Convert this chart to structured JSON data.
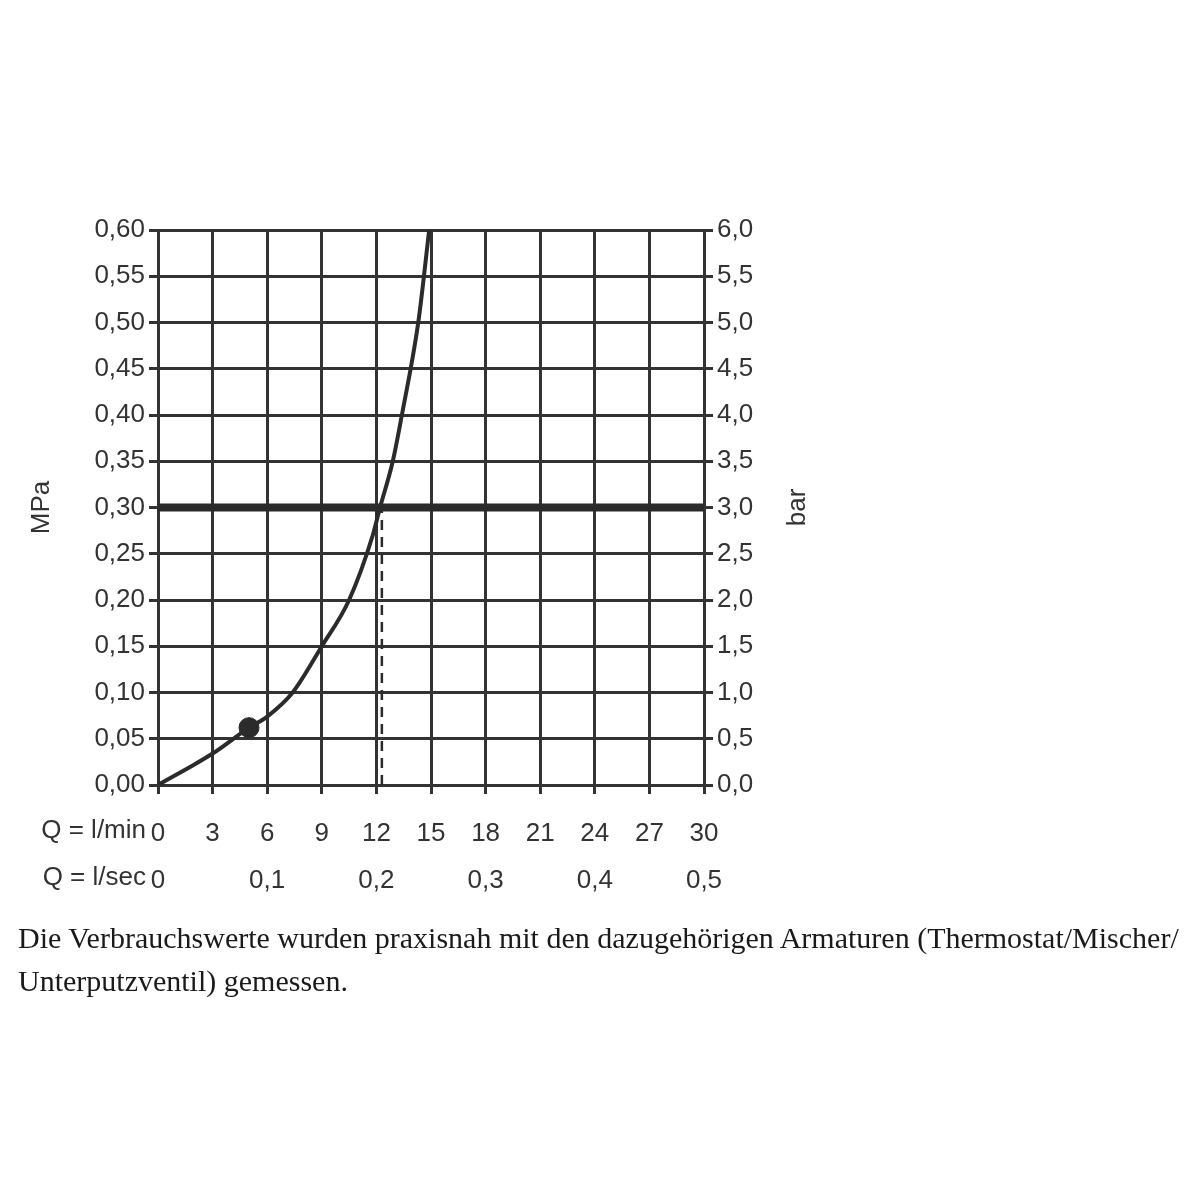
{
  "chart_data": {
    "type": "line",
    "xlabel": "Q = l/min",
    "x2label": "Q = l/sec",
    "ylabel": "MPa",
    "y2label": "bar",
    "x": [
      0,
      3,
      5,
      6,
      7.4,
      9,
      10.5,
      11.8,
      12.2,
      12.9,
      13.4,
      14.3,
      14.9
    ],
    "series": [
      {
        "color": "#2b2b2b",
        "values": [
          0,
          0.034,
          0.062,
          0.074,
          0.1,
          0.15,
          0.2,
          0.27,
          0.3,
          0.35,
          0.4,
          0.5,
          0.6
        ]
      },
      {
        "type": "scatter",
        "color": "#2b2b2b",
        "x": [
          5
        ],
        "values": [
          0.062
        ],
        "marker": "circle"
      }
    ],
    "xlim": [
      0,
      30
    ],
    "xticks": [
      0,
      3,
      6,
      9,
      12,
      15,
      18,
      21,
      24,
      27,
      30
    ],
    "x2lim": [
      0,
      0.5
    ],
    "x2ticks": [
      0,
      {
        "value": 0.1,
        "label": "0,1"
      },
      {
        "value": 0.2,
        "label": "0,2"
      },
      {
        "value": 0.3,
        "label": "0,3"
      },
      {
        "value": 0.4,
        "label": "0,4"
      },
      {
        "value": 0.5,
        "label": "0,5"
      }
    ],
    "ylim": [
      0,
      0.6
    ],
    "yticks": [
      {
        "value": 0,
        "label": "0,00"
      },
      {
        "value": 0.05,
        "label": "0,05"
      },
      {
        "value": 0.1,
        "label": "0,10"
      },
      {
        "value": 0.15,
        "label": "0,15"
      },
      {
        "value": 0.2,
        "label": "0,20"
      },
      {
        "value": 0.25,
        "label": "0,25"
      },
      {
        "value": 0.3,
        "label": "0,30"
      },
      {
        "value": 0.35,
        "label": "0,35"
      },
      {
        "value": 0.4,
        "label": "0,40"
      },
      {
        "value": 0.45,
        "label": "0,45"
      },
      {
        "value": 0.5,
        "label": "0,50"
      },
      {
        "value": 0.55,
        "label": "0,55"
      },
      {
        "value": 0.6,
        "label": "0,60"
      }
    ],
    "y2lim": [
      0,
      6
    ],
    "y2ticks": [
      {
        "value": 0,
        "label": "0,0"
      },
      {
        "value": 0.5,
        "label": "0,5"
      },
      {
        "value": 1,
        "label": "1,0"
      },
      {
        "value": 1.5,
        "label": "1,5"
      },
      {
        "value": 2,
        "label": "2,0"
      },
      {
        "value": 2.5,
        "label": "2,5"
      },
      {
        "value": 3,
        "label": "3,0"
      },
      {
        "value": 3.5,
        "label": "3,5"
      },
      {
        "value": 4,
        "label": "4,0"
      },
      {
        "value": 4.5,
        "label": "4,5"
      },
      {
        "value": 5,
        "label": "5,0"
      },
      {
        "value": 5.5,
        "label": "5,5"
      },
      {
        "value": 6,
        "label": "6,0"
      }
    ],
    "ref_lines": [
      {
        "axis": "y",
        "value": 0.3,
        "color": "#2b2b2b",
        "line_style": "solid"
      },
      {
        "axis": "x",
        "value": 12.3,
        "color": "#2b2b2b",
        "line_style": "dashed"
      }
    ],
    "annotations": [
      "Die Verbrauchswerte wurden praxisnah mit den dazugehörigen Armaturen (Thermostat/Mischer/Unterputzventil) gemessen."
    ],
    "grid": true,
    "marker": "none",
    "line_style": "solid"
  }
}
